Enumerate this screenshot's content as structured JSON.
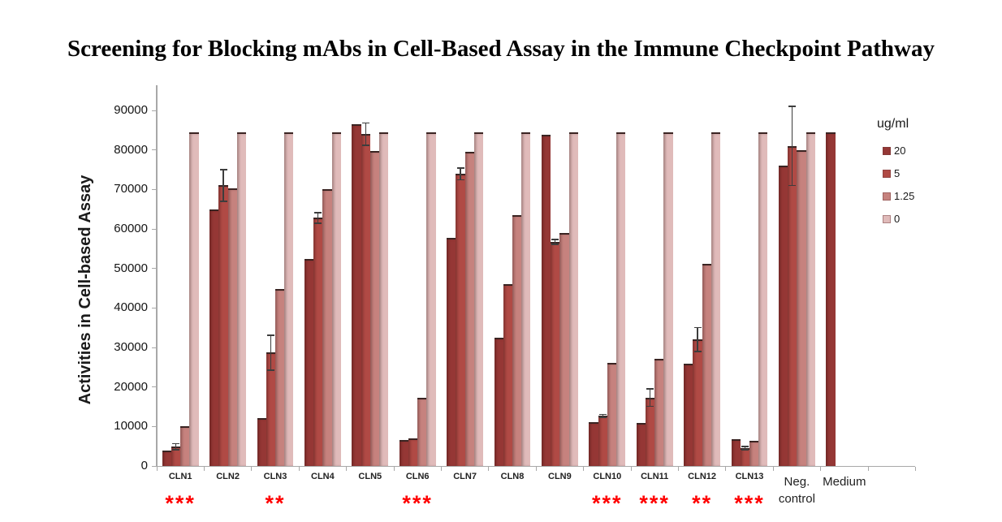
{
  "title": {
    "text": "Screening for Blocking mAbs in Cell-Based Assay in the Immune Checkpoint Pathway"
  },
  "chart_data": {
    "type": "bar",
    "title": "Screening for Blocking mAbs in Cell-Based Assay in the Immune Checkpoint Pathway",
    "ylabel": "Activities in Cell-based Assay",
    "xlabel": "",
    "ylim": [
      0,
      90000
    ],
    "ytick_step": 10000,
    "ytick_labels": [
      "0",
      "10000",
      "20000",
      "30000",
      "40000",
      "50000",
      "60000",
      "70000",
      "80000",
      "90000"
    ],
    "grid": false,
    "axis_color": "#a8a8a8",
    "categories": [
      "CLN1",
      "CLN2",
      "CLN3",
      "CLN4",
      "CLN5",
      "CLN6",
      "CLN7",
      "CLN8",
      "CLN9",
      "CLN10",
      "CLN11",
      "CLN12",
      "CLN13",
      "Neg. control",
      "Medium"
    ],
    "series": [
      {
        "name": "20",
        "color": "#953735",
        "values": [
          3900,
          65000,
          12100,
          52500,
          86500,
          6600,
          57700,
          32400,
          83800,
          11100,
          10900,
          25900,
          6800,
          76000,
          84500
        ]
      },
      {
        "name": "5",
        "color": "#B04A45",
        "values": [
          4900,
          71000,
          28700,
          62800,
          84000,
          7000,
          73900,
          46000,
          56700,
          12700,
          17300,
          32000,
          4500,
          81000,
          null
        ]
      },
      {
        "name": "1.25",
        "color": "#C6827E",
        "values": [
          10000,
          70300,
          44800,
          70000,
          79800,
          17200,
          79500,
          63500,
          59000,
          26100,
          27100,
          51100,
          6400,
          80000,
          null
        ]
      },
      {
        "name": "0",
        "color": "#E0BBBA",
        "values": [
          84500,
          84500,
          84500,
          84500,
          84500,
          84500,
          84500,
          84500,
          84500,
          84500,
          84500,
          84500,
          84500,
          84500,
          null
        ]
      }
    ],
    "error_bars": {
      "series": "5",
      "color": "#3d3d3d",
      "values": [
        800,
        4000,
        4400,
        1300,
        2800,
        null,
        1500,
        null,
        600,
        400,
        2200,
        3000,
        400,
        10000,
        null
      ]
    },
    "significance": {
      "color": "#ff0000",
      "values": [
        "***",
        null,
        "**",
        null,
        null,
        "***",
        null,
        null,
        null,
        "***",
        "***",
        "**",
        "***",
        null,
        null
      ]
    },
    "legend": {
      "title": "ug/ml",
      "position": "right",
      "entries": [
        "20",
        "5",
        "1.25",
        "0"
      ]
    }
  }
}
